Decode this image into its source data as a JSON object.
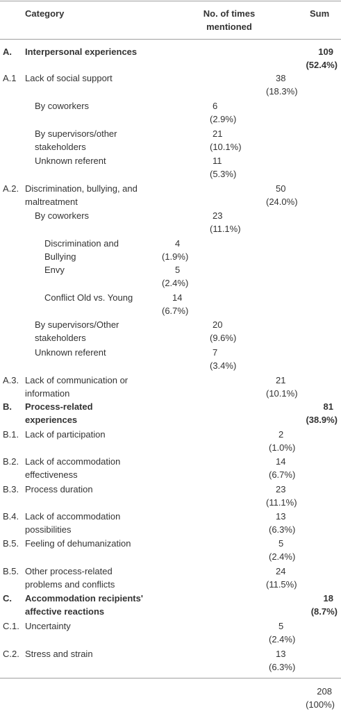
{
  "headers": {
    "category": "Category",
    "times_line1": "No. of times",
    "times_line2": "mentioned",
    "sum": "Sum"
  },
  "rows": {
    "A_code": "A.",
    "A_label": "Interpersonal experiences",
    "A_sum": "109",
    "A_sum_pct": "(52.4%)",
    "A1_code": "A.1",
    "A1_label": "Lack of social support",
    "A1_val": "38",
    "A1_pct": "(18.3%)",
    "A1a_label": "By coworkers",
    "A1a_val": "6",
    "A1a_pct": "(2.9%)",
    "A1b_label1": "By supervisors/other",
    "A1b_label2": "stakeholders",
    "A1b_val": "21",
    "A1b_pct": "(10.1%)",
    "A1c_label": "Unknown referent",
    "A1c_val": "11",
    "A1c_pct": "(5.3%)",
    "A2_code": "A.2.",
    "A2_label1": "Discrimination, bullying, and",
    "A2_label2": "maltreatment",
    "A2_val": "50",
    "A2_pct": "(24.0%)",
    "A2a_label": "By coworkers",
    "A2a_val": "23",
    "A2a_pct": "(11.1%)",
    "A2a1_label1": "Discrimination and",
    "A2a1_label2": "Bullying",
    "A2a1_val": "4",
    "A2a1_pct": "(1.9%)",
    "A2a2_label": "Envy",
    "A2a2_val": "5",
    "A2a2_pct": "(2.4%)",
    "A2a3_label": "Conflict Old vs. Young",
    "A2a3_val": "14",
    "A2a3_pct": "(6.7%)",
    "A2b_label1": "By supervisors/Other",
    "A2b_label2": "stakeholders",
    "A2b_val": "20",
    "A2b_pct": "(9.6%)",
    "A2c_label": "Unknown referent",
    "A2c_val": "7",
    "A2c_pct": "(3.4%)",
    "A3_code": "A.3.",
    "A3_label1": "Lack of communication or",
    "A3_label2": "information",
    "A3_val": "21",
    "A3_pct": "(10.1%)",
    "B_code": "B.",
    "B_label1": "Process-related",
    "B_label2": "experiences",
    "B_sum": "81",
    "B_sum_pct": "(38.9%)",
    "B1_code": "B.1.",
    "B1_label": "Lack of participation",
    "B1_val": "2",
    "B1_pct": "(1.0%)",
    "B2_code": "B.2.",
    "B2_label1": "Lack of accommodation",
    "B2_label2": "effectiveness",
    "B2_val": "14",
    "B2_pct": "(6.7%)",
    "B3_code": "B.3.",
    "B3_label": "Process duration",
    "B3_val": "23",
    "B3_pct": "(11.1%)",
    "B4_code": "B.4.",
    "B4_label1": "Lack of accommodation",
    "B4_label2": "possibilities",
    "B4_val": "13",
    "B4_pct": "(6.3%)",
    "B5_code": "B.5.",
    "B5_label": "Feeling of dehumanization",
    "B5_val": "5",
    "B5_pct": "(2.4%)",
    "B5b_code": "B.5.",
    "B5b_label1": "Other process-related",
    "B5b_label2": "problems and conflicts",
    "B5b_val": "24",
    "B5b_pct": "(11.5%)",
    "C_code": "C.",
    "C_label1": "Accommodation recipients'",
    "C_label2": "affective reactions",
    "C_sum": "18",
    "C_sum_pct": "(8.7%)",
    "C1_code": "C.1.",
    "C1_label": "Uncertainty",
    "C1_val": "5",
    "C1_pct": "(2.4%)",
    "C2_code": "C.2.",
    "C2_label": "Stress and strain",
    "C2_val": "13",
    "C2_pct": "(6.3%)",
    "total": "208",
    "total_pct": "(100%)"
  }
}
